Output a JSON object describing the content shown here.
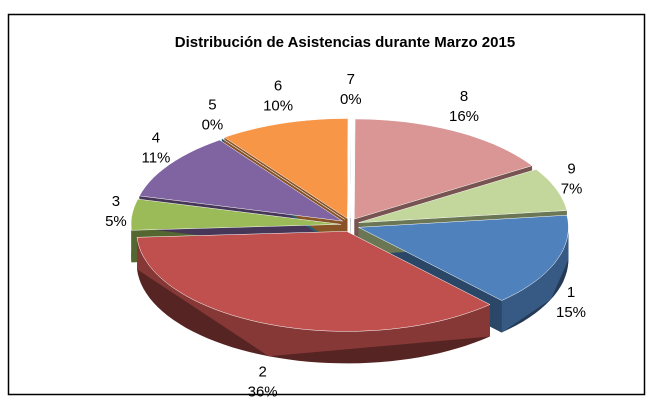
{
  "chart_data": {
    "type": "pie",
    "title": "Distribución de Asistencias durante Marzo 2015",
    "categories": [
      "1",
      "2",
      "3",
      "4",
      "5",
      "6",
      "7",
      "8",
      "9"
    ],
    "values": [
      15,
      36,
      5,
      11,
      0,
      10,
      0,
      16,
      7
    ],
    "value_labels": [
      "15%",
      "36%",
      "5%",
      "11%",
      "0%",
      "10%",
      "0%",
      "16%",
      "7%"
    ],
    "colors": [
      "#4f81bd",
      "#c0504d",
      "#9bbb59",
      "#8064a2",
      "#4bacc6",
      "#f79646",
      "#95b3d7",
      "#d99694",
      "#c3d69b"
    ]
  }
}
